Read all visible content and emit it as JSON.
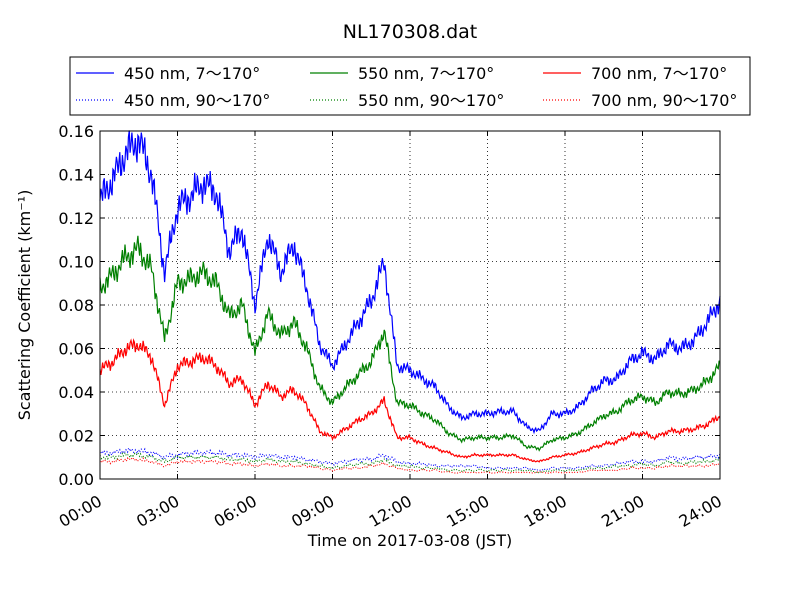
{
  "chart_data": {
    "type": "line",
    "title": "NL170308.dat",
    "xlabel": "Time on 2017-03-08 (JST)",
    "ylabel": "Scattering Coefficient (km⁻¹)",
    "xlim": [
      "00:00",
      "24:00"
    ],
    "ylim": [
      0,
      0.16
    ],
    "grid": true,
    "legend_position": "top",
    "x_ticks": [
      "00:00",
      "03:00",
      "06:00",
      "09:00",
      "12:00",
      "15:00",
      "18:00",
      "21:00",
      "24:00"
    ],
    "y_ticks": [
      "0.00",
      "0.02",
      "0.04",
      "0.06",
      "0.08",
      "0.10",
      "0.12",
      "0.14",
      "0.16"
    ],
    "x": [
      "00:00",
      "00:30",
      "01:00",
      "01:30",
      "02:00",
      "02:30",
      "03:00",
      "03:30",
      "04:00",
      "04:30",
      "05:00",
      "05:30",
      "06:00",
      "06:30",
      "07:00",
      "07:30",
      "08:00",
      "08:30",
      "09:00",
      "09:30",
      "10:00",
      "10:30",
      "11:00",
      "11:30",
      "12:00",
      "12:30",
      "13:00",
      "13:30",
      "14:00",
      "14:30",
      "15:00",
      "15:30",
      "16:00",
      "16:30",
      "17:00",
      "17:30",
      "18:00",
      "18:30",
      "19:00",
      "19:30",
      "20:00",
      "20:30",
      "21:00",
      "21:30",
      "22:00",
      "22:30",
      "23:00",
      "23:30",
      "24:00"
    ],
    "series": [
      {
        "name": "450 nm, 7～170°",
        "color": "#0000ff",
        "style": "solid",
        "values": [
          0.128,
          0.138,
          0.15,
          0.156,
          0.14,
          0.095,
          0.125,
          0.13,
          0.136,
          0.132,
          0.105,
          0.115,
          0.08,
          0.112,
          0.095,
          0.108,
          0.088,
          0.062,
          0.052,
          0.062,
          0.072,
          0.082,
          0.1,
          0.052,
          0.05,
          0.046,
          0.042,
          0.033,
          0.028,
          0.03,
          0.03,
          0.031,
          0.031,
          0.024,
          0.022,
          0.03,
          0.03,
          0.033,
          0.04,
          0.045,
          0.046,
          0.054,
          0.058,
          0.055,
          0.062,
          0.06,
          0.064,
          0.072,
          0.082
        ]
      },
      {
        "name": "450 nm, 90～170°",
        "color": "#0000ff",
        "style": "dotted",
        "values": [
          0.012,
          0.012,
          0.013,
          0.013,
          0.012,
          0.01,
          0.011,
          0.012,
          0.012,
          0.012,
          0.011,
          0.011,
          0.01,
          0.011,
          0.01,
          0.01,
          0.009,
          0.008,
          0.007,
          0.008,
          0.009,
          0.009,
          0.011,
          0.008,
          0.007,
          0.007,
          0.006,
          0.006,
          0.006,
          0.006,
          0.005,
          0.005,
          0.005,
          0.005,
          0.004,
          0.005,
          0.005,
          0.005,
          0.006,
          0.006,
          0.007,
          0.008,
          0.008,
          0.008,
          0.01,
          0.009,
          0.01,
          0.01,
          0.011
        ]
      },
      {
        "name": "550 nm, 7～170°",
        "color": "#008000",
        "style": "solid",
        "values": [
          0.088,
          0.094,
          0.102,
          0.106,
          0.096,
          0.064,
          0.09,
          0.092,
          0.095,
          0.09,
          0.075,
          0.08,
          0.058,
          0.076,
          0.066,
          0.072,
          0.06,
          0.042,
          0.035,
          0.042,
          0.048,
          0.054,
          0.068,
          0.035,
          0.034,
          0.03,
          0.027,
          0.021,
          0.018,
          0.019,
          0.019,
          0.019,
          0.02,
          0.015,
          0.014,
          0.018,
          0.019,
          0.021,
          0.025,
          0.029,
          0.031,
          0.036,
          0.038,
          0.035,
          0.04,
          0.039,
          0.041,
          0.045,
          0.052
        ]
      },
      {
        "name": "550 nm, 90～170°",
        "color": "#008000",
        "style": "dotted",
        "values": [
          0.01,
          0.01,
          0.011,
          0.011,
          0.01,
          0.008,
          0.01,
          0.01,
          0.01,
          0.01,
          0.009,
          0.009,
          0.008,
          0.009,
          0.008,
          0.008,
          0.007,
          0.006,
          0.005,
          0.006,
          0.007,
          0.007,
          0.009,
          0.006,
          0.006,
          0.005,
          0.005,
          0.004,
          0.004,
          0.004,
          0.004,
          0.004,
          0.004,
          0.004,
          0.003,
          0.004,
          0.004,
          0.004,
          0.005,
          0.005,
          0.006,
          0.006,
          0.007,
          0.006,
          0.008,
          0.007,
          0.008,
          0.008,
          0.009
        ]
      },
      {
        "name": "700 nm, 7～170°",
        "color": "#ff0000",
        "style": "solid",
        "values": [
          0.05,
          0.054,
          0.06,
          0.062,
          0.056,
          0.034,
          0.052,
          0.054,
          0.056,
          0.052,
          0.044,
          0.046,
          0.034,
          0.044,
          0.038,
          0.041,
          0.034,
          0.022,
          0.019,
          0.023,
          0.027,
          0.03,
          0.036,
          0.019,
          0.019,
          0.016,
          0.014,
          0.012,
          0.01,
          0.011,
          0.011,
          0.011,
          0.011,
          0.009,
          0.008,
          0.01,
          0.011,
          0.012,
          0.014,
          0.016,
          0.017,
          0.02,
          0.021,
          0.019,
          0.022,
          0.022,
          0.023,
          0.025,
          0.029
        ]
      },
      {
        "name": "700 nm, 90～170°",
        "color": "#ff0000",
        "style": "dotted",
        "values": [
          0.008,
          0.008,
          0.009,
          0.009,
          0.008,
          0.006,
          0.008,
          0.008,
          0.008,
          0.008,
          0.007,
          0.007,
          0.006,
          0.007,
          0.006,
          0.006,
          0.006,
          0.005,
          0.004,
          0.005,
          0.005,
          0.006,
          0.007,
          0.005,
          0.004,
          0.004,
          0.004,
          0.003,
          0.003,
          0.003,
          0.003,
          0.003,
          0.003,
          0.003,
          0.003,
          0.003,
          0.003,
          0.003,
          0.004,
          0.004,
          0.004,
          0.005,
          0.005,
          0.005,
          0.006,
          0.006,
          0.006,
          0.006,
          0.007
        ]
      }
    ]
  }
}
